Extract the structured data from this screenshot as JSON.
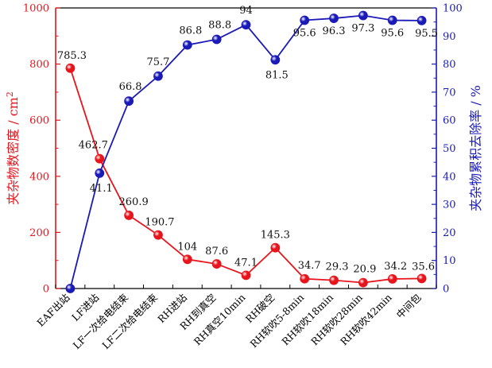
{
  "chart_data": {
    "type": "line",
    "categories": [
      "EAF出站",
      "LF进站",
      "LF一次给电结束",
      "LF二次给电结束",
      "RH进站",
      "RH到真空",
      "RH真空10min",
      "RH破空",
      "RH软吹5-8min",
      "RH软吹18min",
      "RH软吹28min",
      "RH软吹42min",
      "中间包"
    ],
    "series": [
      {
        "axis": "left",
        "color": "#e8141c",
        "values": [
          785.3,
          462.7,
          260.9,
          190.7,
          104,
          87.6,
          47.1,
          145.3,
          34.7,
          29.3,
          20.9,
          34.2,
          35.6
        ],
        "labels": [
          "785.3",
          "462.7",
          "260.9",
          "190.7",
          "104",
          "87.6",
          "47.1",
          "145.3",
          "34.7",
          "29.3",
          "20.9",
          "34.2",
          "35.6"
        ]
      },
      {
        "axis": "right",
        "color": "#1a1ab8",
        "values": [
          0,
          41.1,
          66.8,
          75.7,
          86.8,
          88.8,
          94,
          81.5,
          95.6,
          96.3,
          97.3,
          95.6,
          95.5
        ],
        "labels": [
          "",
          "41.1",
          "66.8",
          "75.7",
          "86.8",
          "88.8",
          "94",
          "81.5",
          "95.6",
          "96.3",
          "97.3",
          "95.6",
          "95.5"
        ]
      }
    ],
    "ylabel_left": "夹杂物数密度 / cm",
    "ylabel_left_sup": "2",
    "ylabel_right": "夹杂物累积去除率 / %",
    "ylim_left": [
      0,
      1000
    ],
    "ylim_right": [
      0,
      100
    ],
    "yticks_left": [
      0,
      200,
      400,
      600,
      800,
      1000
    ],
    "yticks_right": [
      0,
      10,
      20,
      30,
      40,
      50,
      60,
      70,
      80,
      90,
      100
    ],
    "grid": false,
    "left_axis_color": "#e8141c",
    "right_axis_color": "#1a1ab8"
  }
}
